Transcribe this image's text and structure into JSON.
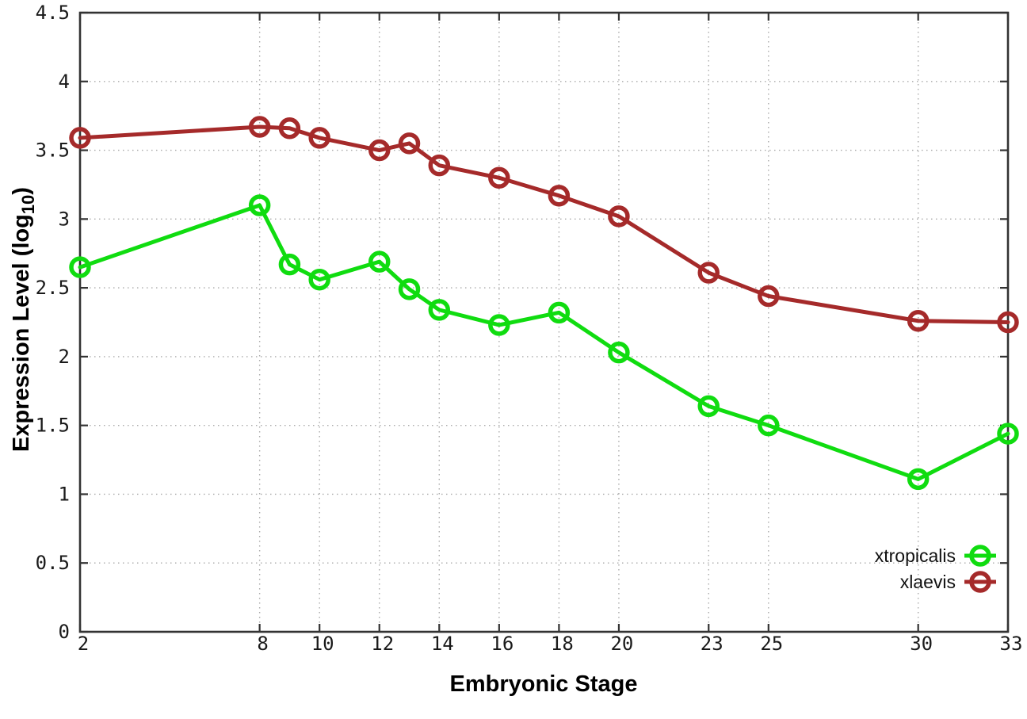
{
  "chart_data": {
    "type": "line",
    "title": "",
    "xlabel": "Embryonic Stage",
    "ylabel": "Expression Level (log10)",
    "ylabel_parts": {
      "pre": "Expression Level (log",
      "sub": "10",
      "post": ")"
    },
    "xlim": [
      2,
      33
    ],
    "ylim": [
      0,
      4.5
    ],
    "grid": true,
    "legend_position": "bottom-right",
    "x": [
      2,
      8,
      9,
      10,
      12,
      13,
      14,
      16,
      18,
      20,
      23,
      25,
      30,
      33
    ],
    "xticks": [
      2,
      8,
      10,
      12,
      14,
      16,
      18,
      20,
      23,
      25,
      30,
      33
    ],
    "xtick_labels": [
      "2",
      "8",
      "10",
      "12",
      "14",
      "16",
      "18",
      "20",
      "23",
      "25",
      "30",
      "33"
    ],
    "yticks": [
      0,
      0.5,
      1,
      1.5,
      2,
      2.5,
      3,
      3.5,
      4,
      4.5
    ],
    "ytick_labels": [
      "0",
      "0.5",
      "1",
      "1.5",
      "2",
      "2.5",
      "3",
      "3.5",
      "4",
      "4.5"
    ],
    "series": [
      {
        "name": "xtropicalis",
        "color": "#10dc10",
        "values": [
          2.65,
          3.1,
          2.67,
          2.56,
          2.69,
          2.49,
          2.34,
          2.23,
          2.32,
          2.03,
          1.64,
          1.5,
          1.11,
          1.44
        ]
      },
      {
        "name": "xlaevis",
        "color": "#a52a2a",
        "values": [
          3.59,
          3.67,
          3.66,
          3.59,
          3.5,
          3.55,
          3.39,
          3.3,
          3.17,
          3.02,
          2.61,
          2.44,
          2.26,
          2.25
        ]
      }
    ]
  },
  "colors": {
    "background": "#ffffff",
    "border": "#333333",
    "grid": "#aaaaaa",
    "tick": "#333333",
    "tick_text": "#1a1a1a",
    "series_green": "#10dc10",
    "series_red": "#a52a2a"
  }
}
